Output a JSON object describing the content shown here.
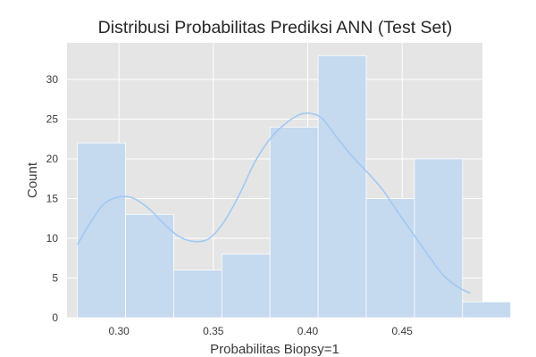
{
  "chart_data": {
    "type": "bar",
    "title": "Distribusi Probabilitas Prediksi ANN (Test Set)",
    "xlabel": "Probabilitas Biopsy=1",
    "ylabel": "Count",
    "xlim": [
      0.2725,
      0.4925
    ],
    "ylim": [
      0,
      34.6
    ],
    "x_ticks": [
      0.3,
      0.35,
      0.4,
      0.45
    ],
    "x_tick_labels": [
      "0.30",
      "0.35",
      "0.40",
      "0.45"
    ],
    "y_ticks": [
      0,
      5,
      10,
      15,
      20,
      25,
      30
    ],
    "y_tick_labels": [
      "0",
      "5",
      "10",
      "15",
      "20",
      "25",
      "30"
    ],
    "bins": [
      {
        "start": 0.278,
        "end": 0.3035,
        "count": 22
      },
      {
        "start": 0.3035,
        "end": 0.329,
        "count": 13
      },
      {
        "start": 0.329,
        "end": 0.3545,
        "count": 6
      },
      {
        "start": 0.3545,
        "end": 0.38,
        "count": 8
      },
      {
        "start": 0.38,
        "end": 0.4055,
        "count": 24
      },
      {
        "start": 0.4055,
        "end": 0.431,
        "count": 33
      },
      {
        "start": 0.431,
        "end": 0.4565,
        "count": 15
      },
      {
        "start": 0.4565,
        "end": 0.482,
        "count": 20
      },
      {
        "start": 0.482,
        "end": 0.5075,
        "count": 2
      }
    ],
    "kde": {
      "x": [
        0.278,
        0.285,
        0.292,
        0.3,
        0.308,
        0.316,
        0.324,
        0.332,
        0.34,
        0.348,
        0.356,
        0.364,
        0.372,
        0.38,
        0.388,
        0.396,
        0.402,
        0.408,
        0.416,
        0.424,
        0.432,
        0.44,
        0.448,
        0.456,
        0.464,
        0.472,
        0.48,
        0.486
      ],
      "y": [
        9.2,
        12.0,
        14.3,
        15.2,
        15.0,
        13.7,
        11.8,
        10.2,
        9.6,
        10.0,
        12.2,
        15.6,
        19.6,
        22.5,
        24.4,
        25.6,
        25.7,
        25.0,
        22.5,
        20.2,
        18.2,
        16.0,
        13.2,
        10.5,
        7.8,
        5.3,
        3.8,
        3.1
      ]
    },
    "grid": true,
    "colors": {
      "bar_fill": "#c5d9ef",
      "kde_line": "#a1c9f4",
      "background": "#e5e5e5",
      "grid": "#ffffff"
    }
  }
}
